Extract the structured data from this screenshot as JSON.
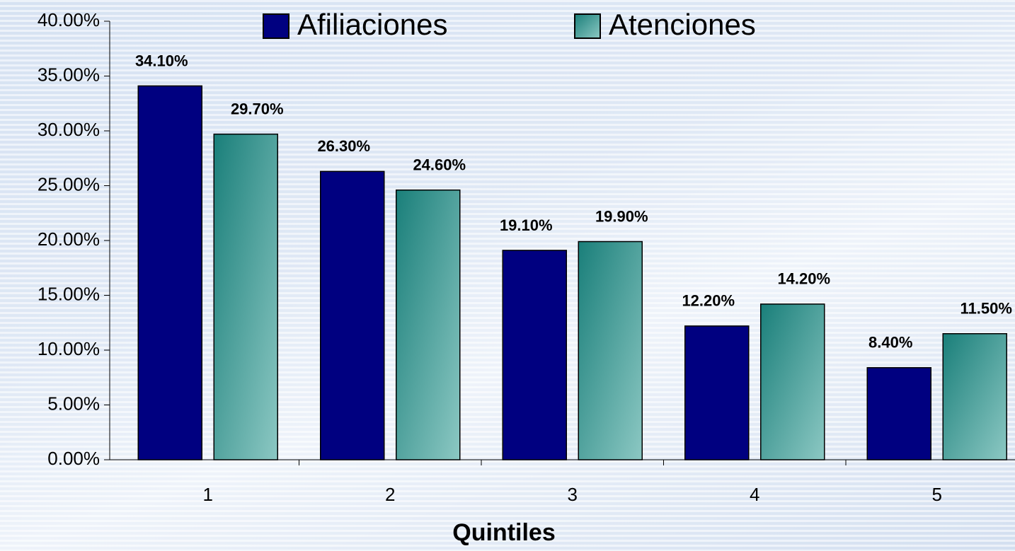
{
  "chart_data": {
    "type": "bar",
    "x_label": "Quintiles",
    "categories": [
      "1",
      "2",
      "3",
      "4",
      "5"
    ],
    "series": [
      {
        "name": "Afiliaciones",
        "color": "#000080",
        "values": [
          34.1,
          26.3,
          19.1,
          12.2,
          8.4
        ],
        "value_labels": [
          "34.10%",
          "26.30%",
          "19.10%",
          "12.20%",
          "8.40%"
        ]
      },
      {
        "name": "Atenciones",
        "color": "#1a7f7a",
        "values": [
          29.7,
          24.6,
          19.9,
          14.2,
          11.5
        ],
        "value_labels": [
          "29.70%",
          "24.60%",
          "19.90%",
          "14.20%",
          "11.50%"
        ]
      }
    ],
    "ylim": [
      0,
      40
    ],
    "yticks": [
      {
        "value": 0,
        "label": "0.00%"
      },
      {
        "value": 5,
        "label": "5.00%"
      },
      {
        "value": 10,
        "label": "10.00%"
      },
      {
        "value": 15,
        "label": "15.00%"
      },
      {
        "value": 20,
        "label": "20.00%"
      },
      {
        "value": 25,
        "label": "25.00%"
      },
      {
        "value": 30,
        "label": "30.00%"
      },
      {
        "value": 35,
        "label": "35.00%"
      },
      {
        "value": 40,
        "label": "40.00%"
      }
    ],
    "grid": false,
    "legend": "top"
  }
}
